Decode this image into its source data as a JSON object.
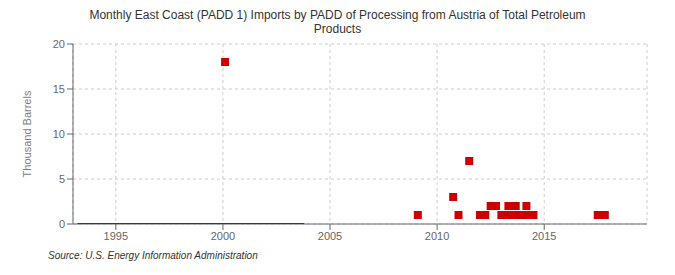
{
  "chart_data": {
    "type": "scatter",
    "title": "Monthly East Coast (PADD 1) Imports by PADD of Processing from Austria of Total Petroleum\nProducts",
    "ylabel": "Thousand Barrels",
    "source": "Source: U.S. Energy Information Administration",
    "xlim": [
      1993.0,
      2019.8
    ],
    "ylim": [
      0,
      20
    ],
    "xticks": [
      1995,
      2000,
      2005,
      2010,
      2015
    ],
    "yticks": [
      0,
      5,
      10,
      15,
      20
    ],
    "grid": true,
    "series": [
      {
        "type": "line",
        "color": "#8b1a1a",
        "x": [
          1993.2,
          2003.8
        ],
        "values": [
          0,
          0
        ]
      },
      {
        "type": "scatter",
        "marker": "square",
        "color": "#cc0000",
        "x": [
          2000.1,
          2009.1,
          2010.75,
          2011.5,
          2011.0,
          2012.0,
          2012.25,
          2012.5,
          2012.75,
          2013.0,
          2013.17,
          2013.33,
          2013.5,
          2013.67,
          2013.83,
          2014.0,
          2014.17,
          2014.33,
          2014.5,
          2017.5,
          2017.83
        ],
        "values": [
          18,
          1,
          3,
          7,
          1,
          1,
          1,
          2,
          2,
          1,
          1,
          2,
          1,
          2,
          1,
          1,
          2,
          1,
          1,
          1,
          1
        ]
      }
    ]
  }
}
